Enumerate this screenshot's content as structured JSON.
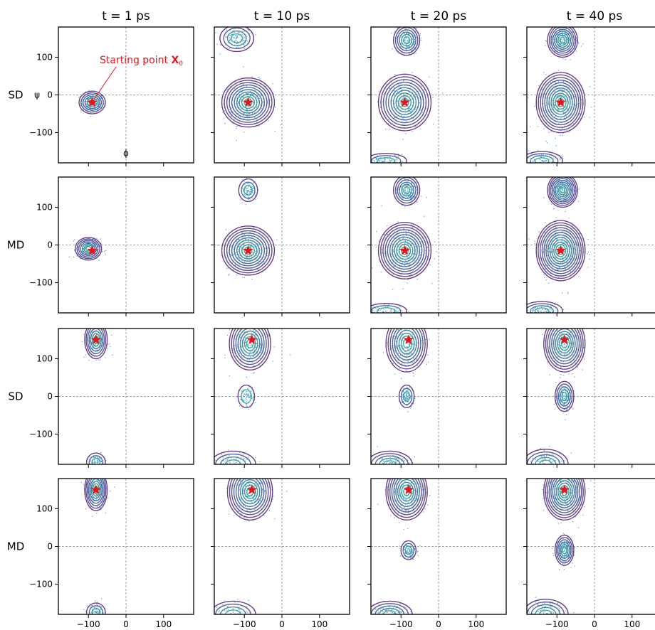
{
  "chart_data": {
    "type": "scatter",
    "description_kind": "grid of ramachandran density plots",
    "columns": [
      "t = 1 ps",
      "t = 10 ps",
      "t = 20 ps",
      "t = 40 ps"
    ],
    "rows": [
      "SD",
      "MD",
      "SD",
      "MD"
    ],
    "xlabel": "ϕ",
    "ylabel": "ψ",
    "xlim": [
      -180,
      180
    ],
    "ylim": [
      -180,
      180
    ],
    "xticks": [
      -100,
      0,
      100
    ],
    "yticks": [
      100,
      0,
      -100
    ],
    "xtick_labels": [
      "−100",
      "0",
      "100"
    ],
    "ytick_labels": [
      "100",
      "0",
      "−100"
    ],
    "reference_lines": {
      "x": 0,
      "y": 0,
      "style": "dashed",
      "color": "#888888"
    },
    "annotation": {
      "text": "Starting point ",
      "symbol": "X",
      "subscript": "0",
      "color": "#e8141a",
      "points_to_row": 0
    },
    "colors": {
      "contour_outer": "#5b2a7a",
      "contour_mid": "#3b5f9a",
      "contour_inner": "#2aa88c",
      "scatter": "#3d8fcf",
      "star": "#e8141a"
    },
    "starting_points": [
      {
        "phi": -90,
        "psi": -20
      },
      {
        "phi": -90,
        "psi": -15
      },
      {
        "phi": -80,
        "psi": 150
      },
      {
        "phi": -80,
        "psi": 150
      }
    ],
    "panels": [
      [
        {
          "blobs": [
            {
              "phi": -90,
              "psi": -20,
              "sx": 35,
              "sy": 30,
              "levels": 6
            }
          ]
        },
        {
          "blobs": [
            {
              "phi": -90,
              "psi": -20,
              "sx": 70,
              "sy": 65,
              "levels": 10
            },
            {
              "phi": -120,
              "psi": 150,
              "sx": 45,
              "sy": 35,
              "levels": 4
            }
          ]
        },
        {
          "blobs": [
            {
              "phi": -90,
              "psi": -20,
              "sx": 70,
              "sy": 75,
              "levels": 10
            },
            {
              "phi": -85,
              "psi": 145,
              "sx": 35,
              "sy": 40,
              "levels": 6
            },
            {
              "phi": -140,
              "psi": -175,
              "sx": 55,
              "sy": 20,
              "levels": 3
            }
          ]
        },
        {
          "blobs": [
            {
              "phi": -90,
              "psi": -20,
              "sx": 65,
              "sy": 80,
              "levels": 11
            },
            {
              "phi": -85,
              "psi": 145,
              "sx": 40,
              "sy": 45,
              "levels": 8
            },
            {
              "phi": -140,
              "psi": -175,
              "sx": 55,
              "sy": 25,
              "levels": 4
            }
          ]
        }
      ],
      [
        {
          "blobs": [
            {
              "phi": -100,
              "psi": -10,
              "sx": 35,
              "sy": 30,
              "levels": 7
            }
          ]
        },
        {
          "blobs": [
            {
              "phi": -90,
              "psi": -15,
              "sx": 70,
              "sy": 65,
              "levels": 10
            },
            {
              "phi": -90,
              "psi": 145,
              "sx": 25,
              "sy": 30,
              "levels": 3
            }
          ]
        },
        {
          "blobs": [
            {
              "phi": -90,
              "psi": -15,
              "sx": 70,
              "sy": 75,
              "levels": 11
            },
            {
              "phi": -85,
              "psi": 145,
              "sx": 35,
              "sy": 40,
              "levels": 6
            },
            {
              "phi": -140,
              "psi": -175,
              "sx": 55,
              "sy": 20,
              "levels": 3
            }
          ]
        },
        {
          "blobs": [
            {
              "phi": -90,
              "psi": -15,
              "sx": 65,
              "sy": 80,
              "levels": 12
            },
            {
              "phi": -85,
              "psi": 145,
              "sx": 40,
              "sy": 45,
              "levels": 9
            },
            {
              "phi": -140,
              "psi": -175,
              "sx": 55,
              "sy": 25,
              "levels": 4
            }
          ]
        }
      ],
      [
        {
          "blobs": [
            {
              "phi": -80,
              "psi": 150,
              "sx": 30,
              "sy": 50,
              "levels": 7
            },
            {
              "phi": -80,
              "psi": -175,
              "sx": 25,
              "sy": 25,
              "levels": 3
            }
          ]
        },
        {
          "blobs": [
            {
              "phi": -85,
              "psi": 140,
              "sx": 55,
              "sy": 70,
              "levels": 9
            },
            {
              "phi": -95,
              "psi": 0,
              "sx": 22,
              "sy": 30,
              "levels": 2
            },
            {
              "phi": -130,
              "psi": -180,
              "sx": 60,
              "sy": 35,
              "levels": 4
            }
          ]
        },
        {
          "blobs": [
            {
              "phi": -85,
              "psi": 140,
              "sx": 55,
              "sy": 75,
              "levels": 9
            },
            {
              "phi": -85,
              "psi": 0,
              "sx": 20,
              "sy": 30,
              "levels": 3
            },
            {
              "phi": -130,
              "psi": -180,
              "sx": 60,
              "sy": 35,
              "levels": 5
            }
          ]
        },
        {
          "blobs": [
            {
              "phi": -80,
              "psi": 140,
              "sx": 55,
              "sy": 75,
              "levels": 10
            },
            {
              "phi": -80,
              "psi": 0,
              "sx": 25,
              "sy": 40,
              "levels": 5
            },
            {
              "phi": -130,
              "psi": -180,
              "sx": 60,
              "sy": 40,
              "levels": 5
            }
          ]
        }
      ],
      [
        {
          "blobs": [
            {
              "phi": -80,
              "psi": 150,
              "sx": 30,
              "sy": 55,
              "levels": 8
            },
            {
              "phi": -80,
              "psi": -175,
              "sx": 25,
              "sy": 25,
              "levels": 3
            }
          ]
        },
        {
          "blobs": [
            {
              "phi": -85,
              "psi": 145,
              "sx": 60,
              "sy": 75,
              "levels": 10
            },
            {
              "phi": -130,
              "psi": -180,
              "sx": 60,
              "sy": 35,
              "levels": 4
            }
          ]
        },
        {
          "blobs": [
            {
              "phi": -85,
              "psi": 145,
              "sx": 55,
              "sy": 75,
              "levels": 10
            },
            {
              "phi": -80,
              "psi": -10,
              "sx": 20,
              "sy": 25,
              "levels": 3
            },
            {
              "phi": -130,
              "psi": -180,
              "sx": 60,
              "sy": 35,
              "levels": 5
            }
          ]
        },
        {
          "blobs": [
            {
              "phi": -80,
              "psi": 145,
              "sx": 55,
              "sy": 75,
              "levels": 11
            },
            {
              "phi": -80,
              "psi": -10,
              "sx": 25,
              "sy": 40,
              "levels": 6
            },
            {
              "phi": -130,
              "psi": -180,
              "sx": 60,
              "sy": 40,
              "levels": 5
            }
          ]
        }
      ]
    ]
  }
}
